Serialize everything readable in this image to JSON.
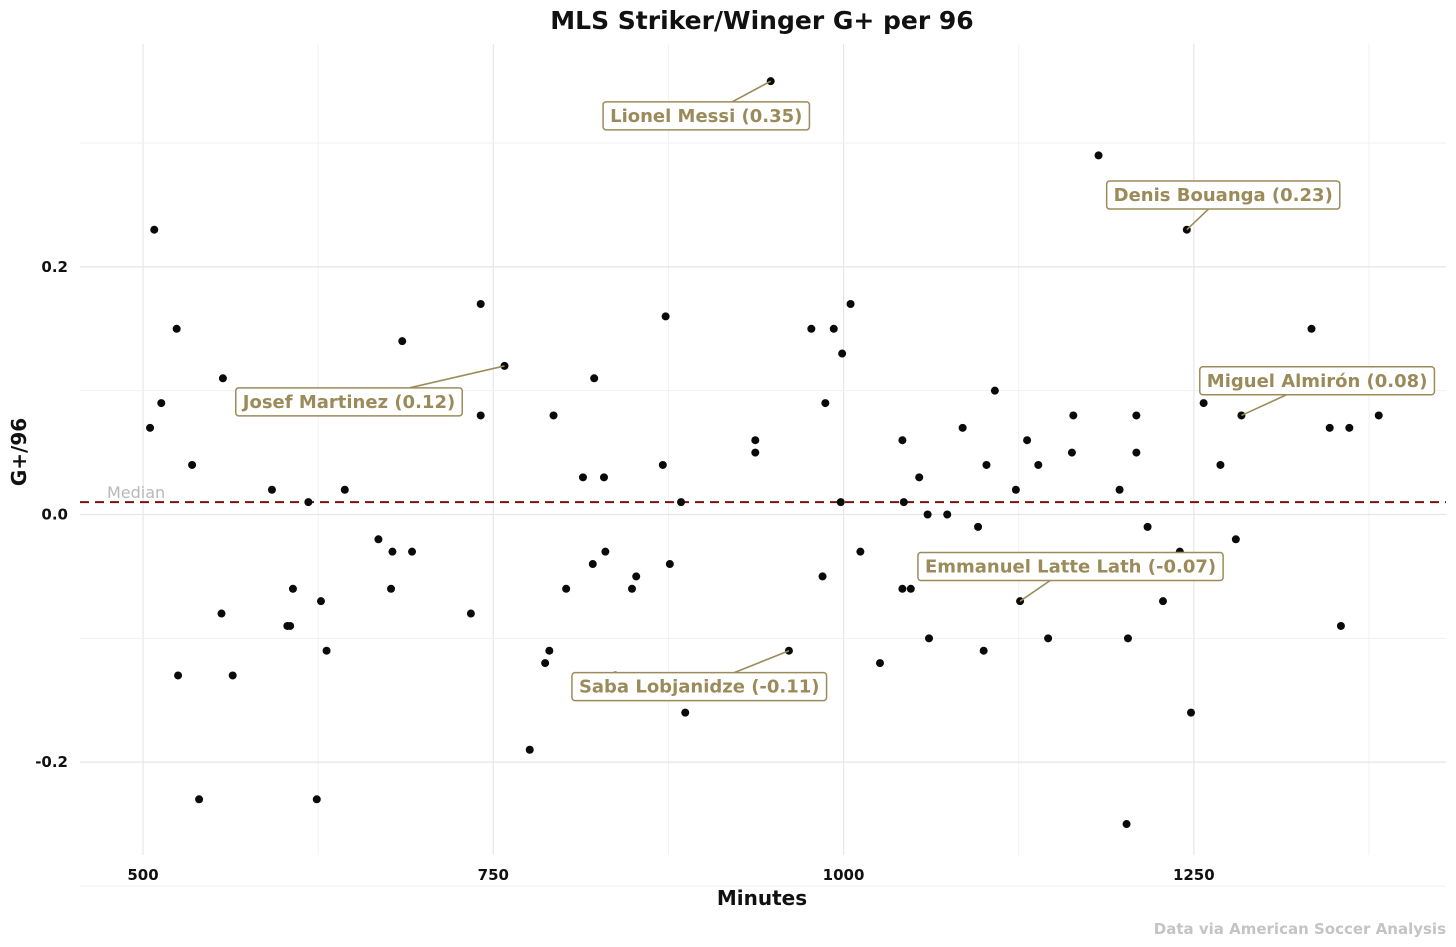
{
  "chart_data": {
    "type": "scatter",
    "title": "MLS Striker/Winger G+ per 96",
    "xlabel": "Minutes",
    "ylabel": "G+/96",
    "caption": "Data via American Soccer Analysis",
    "xlim": [
      455,
      1430
    ],
    "ylim": [
      -0.275,
      0.38
    ],
    "x_ticks": [
      500,
      750,
      1000,
      1250
    ],
    "x_tick_labels": [
      "500",
      "750",
      "1000",
      "1250"
    ],
    "y_ticks": [
      -0.2,
      0.0,
      0.2
    ],
    "y_tick_labels": [
      "-0.2",
      "0.0",
      "0.2"
    ],
    "grid": true,
    "median": {
      "value": 0.01,
      "label": "Median",
      "color": "#7a1010"
    },
    "points": [
      {
        "x": 505,
        "y": 0.07
      },
      {
        "x": 508,
        "y": 0.23
      },
      {
        "x": 513,
        "y": 0.09
      },
      {
        "x": 524,
        "y": 0.15
      },
      {
        "x": 525,
        "y": -0.13
      },
      {
        "x": 535,
        "y": 0.04
      },
      {
        "x": 540,
        "y": -0.23
      },
      {
        "x": 556,
        "y": -0.08
      },
      {
        "x": 557,
        "y": 0.11
      },
      {
        "x": 564,
        "y": -0.13
      },
      {
        "x": 592,
        "y": 0.02
      },
      {
        "x": 603,
        "y": -0.09
      },
      {
        "x": 605,
        "y": -0.09
      },
      {
        "x": 607,
        "y": -0.06
      },
      {
        "x": 618,
        "y": 0.01
      },
      {
        "x": 621,
        "y": 0.09
      },
      {
        "x": 624,
        "y": -0.23
      },
      {
        "x": 627,
        "y": -0.07
      },
      {
        "x": 631,
        "y": -0.11
      },
      {
        "x": 644,
        "y": 0.02
      },
      {
        "x": 668,
        "y": -0.02
      },
      {
        "x": 677,
        "y": -0.06
      },
      {
        "x": 678,
        "y": -0.03
      },
      {
        "x": 685,
        "y": 0.14
      },
      {
        "x": 692,
        "y": -0.03
      },
      {
        "x": 734,
        "y": -0.08
      },
      {
        "x": 741,
        "y": 0.17
      },
      {
        "x": 741,
        "y": 0.08
      },
      {
        "x": 758,
        "y": 0.12
      },
      {
        "x": 776,
        "y": -0.19
      },
      {
        "x": 787,
        "y": -0.12
      },
      {
        "x": 790,
        "y": -0.11
      },
      {
        "x": 793,
        "y": 0.08
      },
      {
        "x": 802,
        "y": -0.06
      },
      {
        "x": 814,
        "y": 0.03
      },
      {
        "x": 821,
        "y": -0.04
      },
      {
        "x": 822,
        "y": 0.11
      },
      {
        "x": 829,
        "y": 0.03
      },
      {
        "x": 830,
        "y": -0.03
      },
      {
        "x": 837,
        "y": -0.13
      },
      {
        "x": 849,
        "y": -0.06
      },
      {
        "x": 852,
        "y": -0.05
      },
      {
        "x": 871,
        "y": 0.04
      },
      {
        "x": 873,
        "y": 0.16
      },
      {
        "x": 876,
        "y": -0.04
      },
      {
        "x": 884,
        "y": 0.01
      },
      {
        "x": 887,
        "y": -0.16
      },
      {
        "x": 937,
        "y": 0.06
      },
      {
        "x": 937,
        "y": 0.05
      },
      {
        "x": 948,
        "y": 0.35
      },
      {
        "x": 961,
        "y": -0.11
      },
      {
        "x": 977,
        "y": 0.15
      },
      {
        "x": 985,
        "y": -0.05
      },
      {
        "x": 987,
        "y": 0.09
      },
      {
        "x": 993,
        "y": 0.15
      },
      {
        "x": 998,
        "y": 0.01
      },
      {
        "x": 999,
        "y": 0.13
      },
      {
        "x": 1005,
        "y": 0.17
      },
      {
        "x": 1012,
        "y": -0.03
      },
      {
        "x": 1026,
        "y": -0.12
      },
      {
        "x": 1042,
        "y": -0.06
      },
      {
        "x": 1042,
        "y": 0.06
      },
      {
        "x": 1043,
        "y": 0.01
      },
      {
        "x": 1048,
        "y": -0.06
      },
      {
        "x": 1054,
        "y": 0.03
      },
      {
        "x": 1060,
        "y": 0.0
      },
      {
        "x": 1061,
        "y": -0.1
      },
      {
        "x": 1074,
        "y": 0.0
      },
      {
        "x": 1085,
        "y": 0.07
      },
      {
        "x": 1096,
        "y": -0.01
      },
      {
        "x": 1100,
        "y": -0.11
      },
      {
        "x": 1102,
        "y": 0.04
      },
      {
        "x": 1108,
        "y": 0.1
      },
      {
        "x": 1123,
        "y": 0.02
      },
      {
        "x": 1126,
        "y": -0.07
      },
      {
        "x": 1131,
        "y": 0.06
      },
      {
        "x": 1139,
        "y": 0.04
      },
      {
        "x": 1146,
        "y": -0.1
      },
      {
        "x": 1163,
        "y": 0.05
      },
      {
        "x": 1164,
        "y": 0.08
      },
      {
        "x": 1182,
        "y": 0.29
      },
      {
        "x": 1197,
        "y": 0.02
      },
      {
        "x": 1202,
        "y": -0.25
      },
      {
        "x": 1203,
        "y": -0.1
      },
      {
        "x": 1207,
        "y": -0.05
      },
      {
        "x": 1209,
        "y": 0.08
      },
      {
        "x": 1209,
        "y": 0.05
      },
      {
        "x": 1217,
        "y": -0.01
      },
      {
        "x": 1228,
        "y": -0.07
      },
      {
        "x": 1240,
        "y": -0.03
      },
      {
        "x": 1245,
        "y": 0.23
      },
      {
        "x": 1248,
        "y": -0.16
      },
      {
        "x": 1257,
        "y": 0.09
      },
      {
        "x": 1269,
        "y": 0.04
      },
      {
        "x": 1280,
        "y": -0.02
      },
      {
        "x": 1284,
        "y": 0.08
      },
      {
        "x": 1334,
        "y": 0.15
      },
      {
        "x": 1347,
        "y": 0.07
      },
      {
        "x": 1355,
        "y": -0.09
      },
      {
        "x": 1361,
        "y": 0.07
      },
      {
        "x": 1382,
        "y": 0.08
      }
    ],
    "annotations": [
      {
        "label": "Lionel Messi (0.35)",
        "x": 948,
        "y": 0.35,
        "label_x": 902,
        "label_y": 0.322
      },
      {
        "label": "Denis Bouanga (0.23)",
        "x": 1245,
        "y": 0.23,
        "label_x": 1271,
        "label_y": 0.258
      },
      {
        "label": "Josef Martinez (0.12)",
        "x": 758,
        "y": 0.12,
        "label_x": 647,
        "label_y": 0.091
      },
      {
        "label": "Miguel Almirón (0.08)",
        "x": 1284,
        "y": 0.08,
        "label_x": 1338,
        "label_y": 0.108
      },
      {
        "label": "Emmanuel Latte Lath (-0.07)",
        "x": 1126,
        "y": -0.07,
        "label_x": 1162,
        "label_y": -0.042
      },
      {
        "label": "Saba Lobjanidze (-0.11)",
        "x": 961,
        "y": -0.11,
        "label_x": 897,
        "label_y": -0.139
      }
    ]
  }
}
